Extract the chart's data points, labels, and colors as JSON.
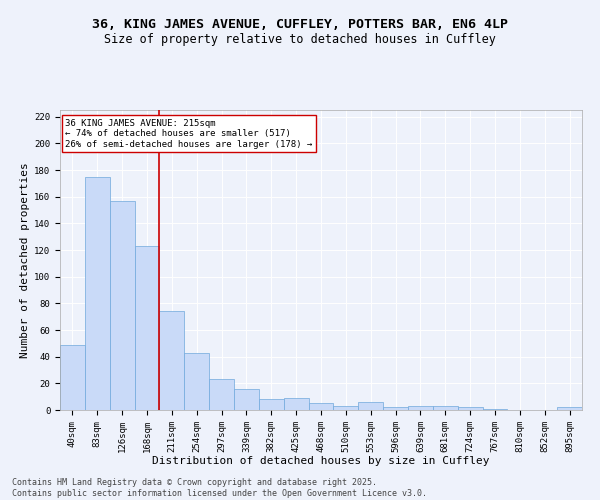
{
  "title": "36, KING JAMES AVENUE, CUFFLEY, POTTERS BAR, EN6 4LP",
  "subtitle": "Size of property relative to detached houses in Cuffley",
  "xlabel": "Distribution of detached houses by size in Cuffley",
  "ylabel": "Number of detached properties",
  "categories": [
    "40sqm",
    "83sqm",
    "126sqm",
    "168sqm",
    "211sqm",
    "254sqm",
    "297sqm",
    "339sqm",
    "382sqm",
    "425sqm",
    "468sqm",
    "510sqm",
    "553sqm",
    "596sqm",
    "639sqm",
    "681sqm",
    "724sqm",
    "767sqm",
    "810sqm",
    "852sqm",
    "895sqm"
  ],
  "values": [
    49,
    175,
    157,
    123,
    74,
    43,
    23,
    16,
    8,
    9,
    5,
    3,
    6,
    2,
    3,
    3,
    2,
    1,
    0,
    0,
    2
  ],
  "bar_color": "#c9daf8",
  "bar_edge_color": "#6fa8dc",
  "vline_index": 4,
  "vline_color": "#cc0000",
  "annotation_title": "36 KING JAMES AVENUE: 215sqm",
  "annotation_line1": "← 74% of detached houses are smaller (517)",
  "annotation_line2": "26% of semi-detached houses are larger (178) →",
  "annotation_box_color": "#ffffff",
  "annotation_box_edge": "#cc0000",
  "ylim": [
    0,
    225
  ],
  "yticks": [
    0,
    20,
    40,
    60,
    80,
    100,
    120,
    140,
    160,
    180,
    200,
    220
  ],
  "footer_line1": "Contains HM Land Registry data © Crown copyright and database right 2025.",
  "footer_line2": "Contains public sector information licensed under the Open Government Licence v3.0.",
  "background_color": "#eef2fb",
  "grid_color": "#ffffff",
  "title_fontsize": 9.5,
  "subtitle_fontsize": 8.5,
  "axis_label_fontsize": 8,
  "tick_fontsize": 6.5,
  "footer_fontsize": 6,
  "annotation_fontsize": 6.5
}
